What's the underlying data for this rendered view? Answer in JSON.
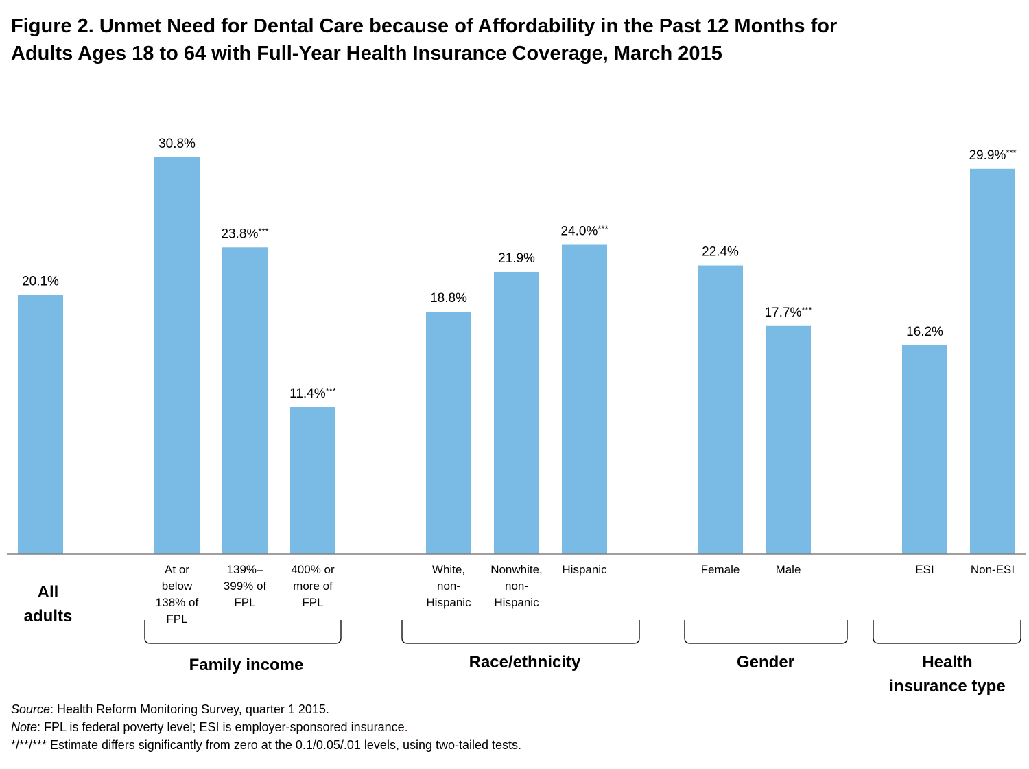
{
  "title_line1": "Figure 2. Unmet Need for Dental Care because of Affordability in the Past 12 Months for",
  "title_line2": "Adults Ages 18 to 64 with Full-Year Health Insurance Coverage, March 2015",
  "colors": {
    "bar": "#79bbe4",
    "axis": "#808080",
    "accent_dot": "#cc0000"
  },
  "chart_data": {
    "type": "bar",
    "title": "Figure 2. Unmet Need for Dental Care because of Affordability in the Past 12 Months for Adults Ages 18 to 64 with Full-Year Health Insurance Coverage, March 2015",
    "ylabel": "",
    "xlabel": "",
    "ylim": [
      0,
      32
    ],
    "unit": "%",
    "bars": [
      {
        "group": "All adults",
        "category": [
          "",
          ""
        ],
        "value": 20.1,
        "label": "20.1%",
        "stars": ""
      },
      {
        "group": "Family income",
        "category": [
          "At or",
          "below",
          "138% of",
          "FPL"
        ],
        "value": 30.8,
        "label": "30.8%",
        "stars": ""
      },
      {
        "group": "Family income",
        "category": [
          "139%–",
          "399% of",
          "FPL"
        ],
        "value": 23.8,
        "label": "23.8%",
        "stars": "***"
      },
      {
        "group": "Family income",
        "category": [
          "400% or",
          "more of",
          "FPL"
        ],
        "value": 11.4,
        "label": "11.4%",
        "stars": "***"
      },
      {
        "group": "Race/ethnicity",
        "category": [
          "White,",
          "non-",
          "Hispanic"
        ],
        "value": 18.8,
        "label": "18.8%",
        "stars": ""
      },
      {
        "group": "Race/ethnicity",
        "category": [
          "Nonwhite,",
          "non-",
          "Hispanic"
        ],
        "value": 21.9,
        "label": "21.9%",
        "stars": ""
      },
      {
        "group": "Race/ethnicity",
        "category": [
          "Hispanic"
        ],
        "value": 24.0,
        "label": "24.0%",
        "stars": "***"
      },
      {
        "group": "Gender",
        "category": [
          "Female"
        ],
        "value": 22.4,
        "label": "22.4%",
        "stars": ""
      },
      {
        "group": "Gender",
        "category": [
          "Male"
        ],
        "value": 17.7,
        "label": "17.7%",
        "stars": "***"
      },
      {
        "group": "Health insurance type",
        "category": [
          "ESI"
        ],
        "value": 16.2,
        "label": "16.2%",
        "stars": ""
      },
      {
        "group": "Health insurance type",
        "category": [
          "Non-ESI"
        ],
        "value": 29.9,
        "label": "29.9%",
        "stars": "***"
      }
    ],
    "groups": [
      {
        "name": "All adults",
        "lines": [
          "All",
          "adults"
        ],
        "bracket": false
      },
      {
        "name": "Family income",
        "lines": [
          "Family income"
        ],
        "bracket": true
      },
      {
        "name": "Race/ethnicity",
        "lines": [
          "Race/ethnicity"
        ],
        "bracket": true
      },
      {
        "name": "Gender",
        "lines": [
          "Gender"
        ],
        "bracket": true
      },
      {
        "name": "Health insurance type",
        "lines": [
          "Health",
          "insurance type"
        ],
        "bracket": true
      }
    ]
  },
  "footnotes": {
    "source_label": "Source",
    "source_text": ": Health Reform Monitoring Survey,  quarter 1 2015.",
    "note_label": "Note",
    "note_text": ": FPL is federal poverty level; ESI is employer-sponsored insurance",
    "note_end": ".",
    "stars_label": "*/**/***",
    "stars_text": "  Estimate differs significantly from zero at the 0.1/0.05/.01 levels, using two-tailed tests."
  }
}
